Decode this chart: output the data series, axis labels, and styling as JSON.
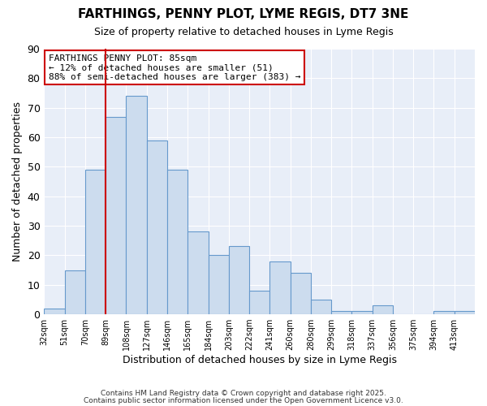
{
  "title": "FARTHINGS, PENNY PLOT, LYME REGIS, DT7 3NE",
  "subtitle": "Size of property relative to detached houses in Lyme Regis",
  "xlabel": "Distribution of detached houses by size in Lyme Regis",
  "ylabel": "Number of detached properties",
  "bar_color": "#ccdcee",
  "bar_edge_color": "#6699cc",
  "background_color": "#ffffff",
  "plot_bg_color": "#e8eef8",
  "grid_color": "#ffffff",
  "categories": [
    "32sqm",
    "51sqm",
    "70sqm",
    "89sqm",
    "108sqm",
    "127sqm",
    "146sqm",
    "165sqm",
    "184sqm",
    "203sqm",
    "222sqm",
    "241sqm",
    "260sqm",
    "280sqm",
    "299sqm",
    "318sqm",
    "337sqm",
    "356sqm",
    "375sqm",
    "394sqm",
    "413sqm"
  ],
  "values": [
    2,
    15,
    49,
    67,
    74,
    59,
    49,
    28,
    20,
    23,
    8,
    18,
    14,
    5,
    1,
    1,
    3,
    0,
    0,
    1,
    1
  ],
  "ylim": [
    0,
    90
  ],
  "yticks": [
    0,
    10,
    20,
    30,
    40,
    50,
    60,
    70,
    80,
    90
  ],
  "red_line_index": 3,
  "annotation_text": "FARTHINGS PENNY PLOT: 85sqm\n← 12% of detached houses are smaller (51)\n88% of semi-detached houses are larger (383) →",
  "annotation_box_color": "#ffffff",
  "annotation_border_color": "#cc0000",
  "footnote1": "Contains HM Land Registry data © Crown copyright and database right 2025.",
  "footnote2": "Contains public sector information licensed under the Open Government Licence v3.0."
}
